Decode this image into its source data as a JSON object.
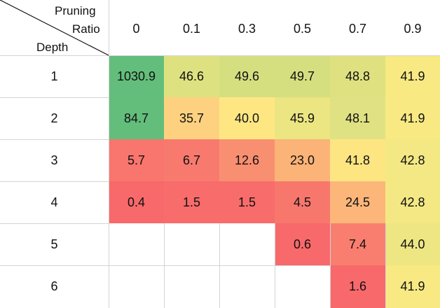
{
  "chart_data": {
    "type": "heatmap",
    "corner": {
      "col_label": [
        "Pruning",
        "Ratio"
      ],
      "row_label": "Depth"
    },
    "columns": [
      "0",
      "0.1",
      "0.3",
      "0.5",
      "0.7",
      "0.9"
    ],
    "rows": [
      "1",
      "2",
      "3",
      "4",
      "5",
      "6"
    ],
    "values": [
      [
        "1030.9",
        "46.6",
        "49.6",
        "49.7",
        "48.8",
        "41.9"
      ],
      [
        "84.7",
        "35.7",
        "40.0",
        "45.9",
        "48.1",
        "41.9"
      ],
      [
        "5.7",
        "6.7",
        "12.6",
        "23.0",
        "41.8",
        "42.8"
      ],
      [
        "0.4",
        "1.5",
        "1.5",
        "4.5",
        "24.5",
        "42.8"
      ],
      [
        "",
        "",
        "",
        "0.6",
        "7.4",
        "44.0"
      ],
      [
        "",
        "",
        "",
        "",
        "1.6",
        "41.9"
      ]
    ],
    "colors": [
      [
        "#63be7b",
        "#dee180",
        "#d5df80",
        "#d6df80",
        "#dfe180",
        "#f8e983"
      ],
      [
        "#63be7b",
        "#fdd17f",
        "#fee783",
        "#ebe582",
        "#e0e182",
        "#f8e983"
      ],
      [
        "#f8766d",
        "#f87a6e",
        "#f98f71",
        "#fbb378",
        "#fde582",
        "#f3e883"
      ],
      [
        "#f8696b",
        "#f86c6b",
        "#f86c6b",
        "#f8776d",
        "#fcb679",
        "#f3e883"
      ],
      [
        null,
        null,
        null,
        "#f8696b",
        "#f97e6f",
        "#eee683"
      ],
      [
        null,
        null,
        null,
        null,
        "#f8696b",
        "#f8e983"
      ]
    ]
  }
}
